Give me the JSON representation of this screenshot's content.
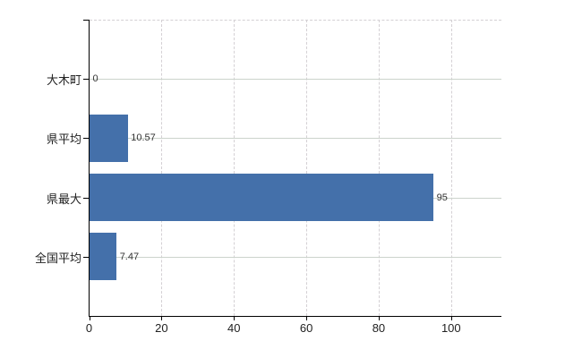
{
  "chart_data": {
    "type": "bar",
    "orientation": "horizontal",
    "title": "",
    "xlabel": "",
    "ylabel": "",
    "categories": [
      "大木町",
      "県平均",
      "県最大",
      "全国平均"
    ],
    "values": [
      0,
      10.57,
      95,
      7.47
    ],
    "value_labels": [
      "0",
      "10.57",
      "95",
      "7.47"
    ],
    "x_ticks": [
      "0",
      "20",
      "40",
      "60",
      "80",
      "100"
    ],
    "x_tick_values": [
      0,
      20,
      40,
      60,
      80,
      100
    ],
    "xlim": [
      0,
      113.9
    ],
    "grid": true,
    "legend": false,
    "bar_color": "#4470aa",
    "grid_color_horizontal": "#ccd3cc",
    "grid_color_vertical": "#d4d0d4",
    "axis_color": "#000000",
    "tick_label_color": "#222222",
    "value_label_color": "#333333"
  }
}
